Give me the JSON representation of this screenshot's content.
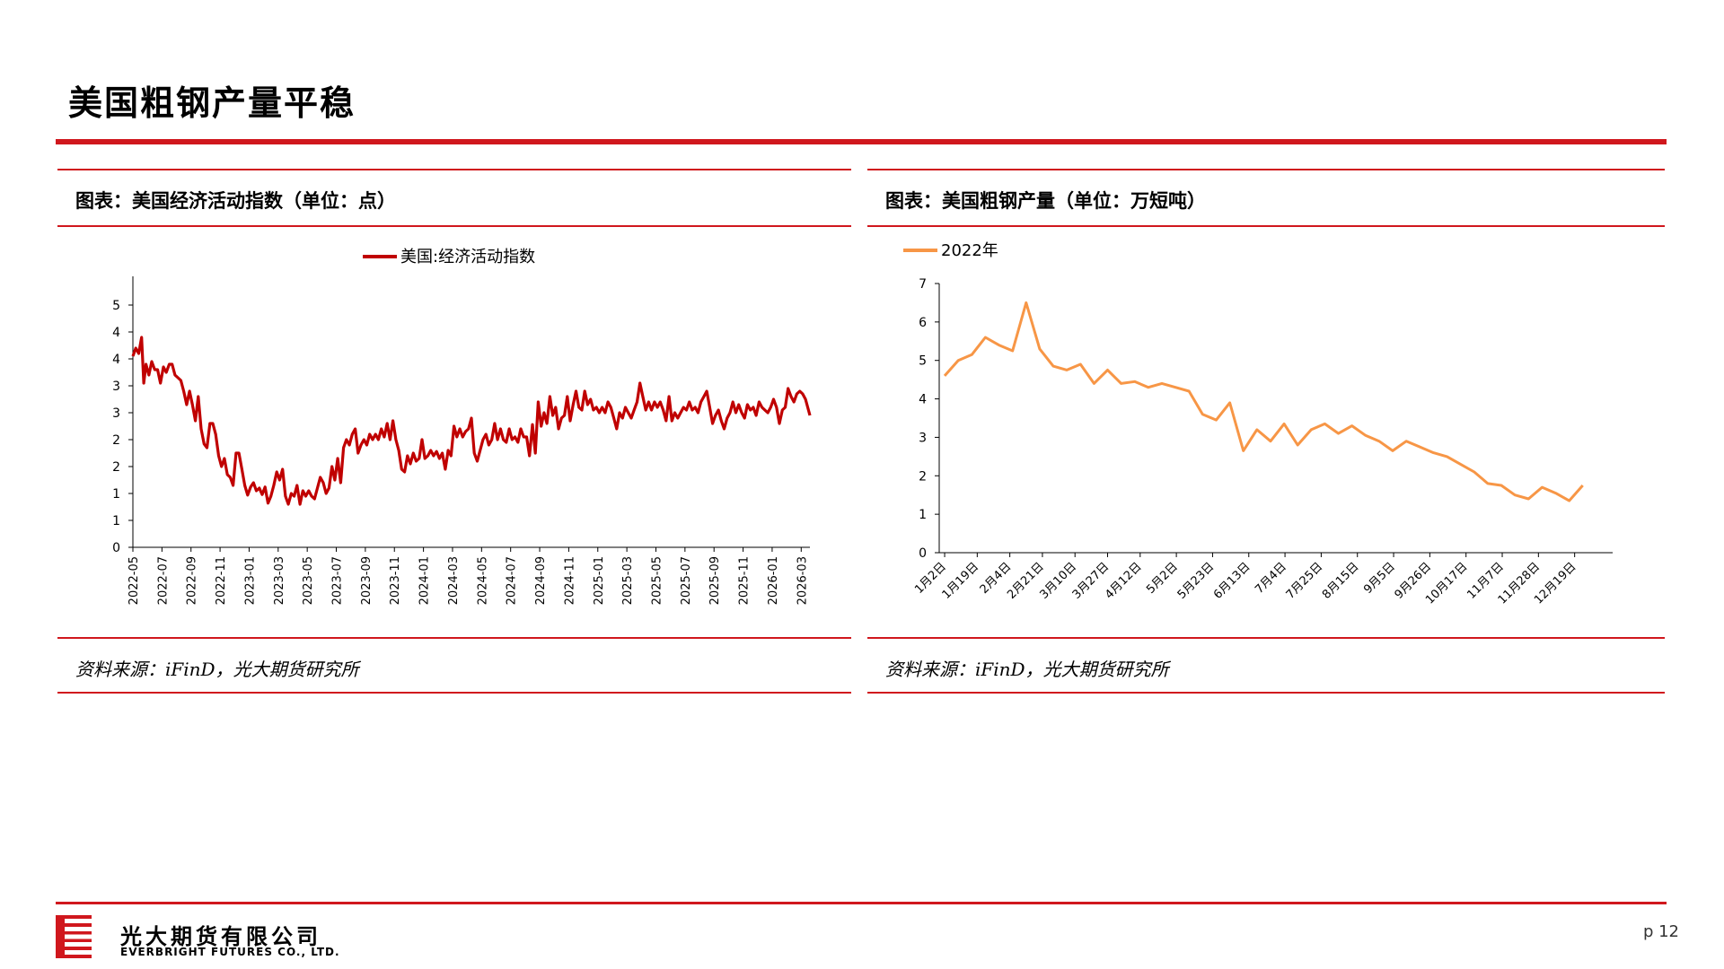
{
  "page": {
    "title": "美国粗钢产量平稳",
    "page_number": "p 12",
    "accent_color": "#d0171d"
  },
  "company": {
    "name_cn": "光大期货有限公司",
    "name_en": "EVERBRIGHT FUTURES CO., LTD."
  },
  "panels": [
    {
      "title": "图表：美国经济活动指数（单位：点）",
      "source": "资料来源：iFinD，光大期货研究所"
    },
    {
      "title": "图表：美国粗钢产量（单位：万短吨）",
      "source": "资料来源：iFinD，光大期货研究所"
    }
  ],
  "chart_data": [
    {
      "type": "line",
      "title": "",
      "xlabel": "",
      "ylabel": "",
      "ylim": [
        0,
        5
      ],
      "yticks": [
        0,
        0.5,
        1,
        1.5,
        2,
        2.5,
        3,
        3.5,
        4,
        4.5
      ],
      "ytick_labels": [
        "0",
        "1",
        "1",
        "2",
        "2",
        "3",
        "3",
        "4",
        "4",
        "5"
      ],
      "x_tick_labels": [
        "2022-05",
        "2022-07",
        "2022-09",
        "2022-11",
        "2023-01",
        "2023-03",
        "2023-05",
        "2023-07",
        "2023-09",
        "2023-11",
        "2024-01",
        "2024-03",
        "2024-05",
        "2024-07",
        "2024-09",
        "2024-11",
        "2025-01",
        "2025-03",
        "2025-05",
        "2025-07",
        "2025-09",
        "2025-11",
        "2026-01",
        "2026-03"
      ],
      "x_range": [
        0,
        46.6
      ],
      "grid": false,
      "legend": "top-center",
      "series": [
        {
          "name": "美国:经济活动指数",
          "color": "#c00000",
          "points": [
            [
              0,
              3.55
            ],
            [
              0.2,
              3.7
            ],
            [
              0.4,
              3.6
            ],
            [
              0.6,
              3.9
            ],
            [
              0.75,
              3.05
            ],
            [
              0.9,
              3.4
            ],
            [
              1.1,
              3.2
            ],
            [
              1.3,
              3.45
            ],
            [
              1.5,
              3.3
            ],
            [
              1.7,
              3.3
            ],
            [
              1.9,
              3.05
            ],
            [
              2.1,
              3.35
            ],
            [
              2.3,
              3.25
            ],
            [
              2.5,
              3.4
            ],
            [
              2.7,
              3.4
            ],
            [
              2.9,
              3.2
            ],
            [
              3.1,
              3.15
            ],
            [
              3.3,
              3.1
            ],
            [
              3.5,
              2.9
            ],
            [
              3.7,
              2.65
            ],
            [
              3.9,
              2.9
            ],
            [
              4.1,
              2.65
            ],
            [
              4.3,
              2.35
            ],
            [
              4.5,
              2.8
            ],
            [
              4.7,
              2.2
            ],
            [
              4.9,
              1.92
            ],
            [
              5.1,
              1.85
            ],
            [
              5.3,
              2.3
            ],
            [
              5.5,
              2.3
            ],
            [
              5.7,
              2.1
            ],
            [
              5.9,
              1.7
            ],
            [
              6.1,
              1.5
            ],
            [
              6.3,
              1.65
            ],
            [
              6.5,
              1.35
            ],
            [
              6.7,
              1.3
            ],
            [
              6.9,
              1.15
            ],
            [
              7.1,
              1.75
            ],
            [
              7.3,
              1.75
            ],
            [
              7.5,
              1.45
            ],
            [
              7.7,
              1.15
            ],
            [
              7.9,
              0.97
            ],
            [
              8.1,
              1.12
            ],
            [
              8.3,
              1.2
            ],
            [
              8.5,
              1.05
            ],
            [
              8.7,
              1.1
            ],
            [
              8.9,
              0.98
            ],
            [
              9.1,
              1.12
            ],
            [
              9.3,
              0.82
            ],
            [
              9.5,
              0.95
            ],
            [
              9.7,
              1.15
            ],
            [
              9.9,
              1.4
            ],
            [
              10.1,
              1.25
            ],
            [
              10.3,
              1.45
            ],
            [
              10.5,
              0.95
            ],
            [
              10.7,
              0.8
            ],
            [
              10.9,
              1.0
            ],
            [
              11.1,
              0.95
            ],
            [
              11.3,
              1.15
            ],
            [
              11.5,
              0.8
            ],
            [
              11.7,
              1.05
            ],
            [
              11.9,
              0.95
            ],
            [
              12.1,
              1.05
            ],
            [
              12.3,
              0.95
            ],
            [
              12.5,
              0.9
            ],
            [
              12.7,
              1.1
            ],
            [
              12.9,
              1.3
            ],
            [
              13.1,
              1.2
            ],
            [
              13.3,
              1.0
            ],
            [
              13.5,
              1.1
            ],
            [
              13.7,
              1.5
            ],
            [
              13.9,
              1.25
            ],
            [
              14.1,
              1.65
            ],
            [
              14.3,
              1.2
            ],
            [
              14.5,
              1.85
            ],
            [
              14.7,
              2.0
            ],
            [
              14.9,
              1.9
            ],
            [
              15.1,
              2.1
            ],
            [
              15.3,
              2.2
            ],
            [
              15.5,
              1.75
            ],
            [
              15.7,
              1.9
            ],
            [
              15.9,
              2.0
            ],
            [
              16.1,
              1.9
            ],
            [
              16.3,
              2.1
            ],
            [
              16.5,
              2.0
            ],
            [
              16.7,
              2.1
            ],
            [
              16.9,
              2.0
            ],
            [
              17.1,
              2.2
            ],
            [
              17.3,
              2.05
            ],
            [
              17.5,
              2.3
            ],
            [
              17.7,
              2.0
            ],
            [
              17.9,
              2.35
            ],
            [
              18.1,
              2.0
            ],
            [
              18.3,
              1.8
            ],
            [
              18.5,
              1.45
            ],
            [
              18.7,
              1.4
            ],
            [
              18.9,
              1.7
            ],
            [
              19.1,
              1.55
            ],
            [
              19.3,
              1.75
            ],
            [
              19.5,
              1.6
            ],
            [
              19.7,
              1.65
            ],
            [
              19.9,
              2.0
            ],
            [
              20.1,
              1.65
            ],
            [
              20.3,
              1.7
            ],
            [
              20.5,
              1.8
            ],
            [
              20.7,
              1.7
            ],
            [
              20.9,
              1.78
            ],
            [
              21.1,
              1.65
            ],
            [
              21.3,
              1.75
            ],
            [
              21.5,
              1.45
            ],
            [
              21.7,
              1.8
            ],
            [
              21.9,
              1.7
            ],
            [
              22.1,
              2.25
            ],
            [
              22.3,
              2.05
            ],
            [
              22.5,
              2.2
            ],
            [
              22.7,
              2.05
            ],
            [
              22.9,
              2.15
            ],
            [
              23.1,
              2.2
            ],
            [
              23.3,
              2.4
            ],
            [
              23.5,
              1.75
            ],
            [
              23.7,
              1.6
            ],
            [
              23.9,
              1.8
            ],
            [
              24.1,
              2.0
            ],
            [
              24.3,
              2.1
            ],
            [
              24.5,
              1.9
            ],
            [
              24.7,
              2.0
            ],
            [
              24.9,
              2.3
            ],
            [
              25.1,
              2.0
            ],
            [
              25.3,
              2.2
            ],
            [
              25.5,
              2.0
            ],
            [
              25.7,
              1.95
            ],
            [
              25.9,
              2.2
            ],
            [
              26.1,
              2.0
            ],
            [
              26.3,
              2.05
            ],
            [
              26.5,
              1.95
            ],
            [
              26.7,
              2.2
            ],
            [
              26.9,
              2.05
            ],
            [
              27.1,
              2.05
            ],
            [
              27.3,
              1.7
            ],
            [
              27.5,
              2.28
            ],
            [
              27.7,
              1.75
            ],
            [
              27.9,
              2.7
            ],
            [
              28.1,
              2.25
            ],
            [
              28.3,
              2.5
            ],
            [
              28.5,
              2.3
            ],
            [
              28.7,
              2.8
            ],
            [
              28.9,
              2.45
            ],
            [
              29.1,
              2.6
            ],
            [
              29.3,
              2.2
            ],
            [
              29.5,
              2.4
            ],
            [
              29.7,
              2.45
            ],
            [
              29.9,
              2.8
            ],
            [
              30.1,
              2.35
            ],
            [
              30.3,
              2.65
            ],
            [
              30.5,
              2.9
            ],
            [
              30.7,
              2.6
            ],
            [
              30.9,
              2.55
            ],
            [
              31.1,
              2.9
            ],
            [
              31.3,
              2.65
            ],
            [
              31.5,
              2.75
            ],
            [
              31.7,
              2.55
            ],
            [
              31.9,
              2.6
            ],
            [
              32.1,
              2.5
            ],
            [
              32.3,
              2.6
            ],
            [
              32.5,
              2.5
            ],
            [
              32.7,
              2.7
            ],
            [
              32.9,
              2.6
            ],
            [
              33.1,
              2.4
            ],
            [
              33.3,
              2.2
            ],
            [
              33.5,
              2.5
            ],
            [
              33.7,
              2.4
            ],
            [
              33.9,
              2.6
            ],
            [
              34.1,
              2.5
            ],
            [
              34.3,
              2.4
            ],
            [
              34.5,
              2.55
            ],
            [
              34.7,
              2.7
            ],
            [
              34.9,
              3.05
            ],
            [
              35.1,
              2.8
            ],
            [
              35.3,
              2.55
            ],
            [
              35.5,
              2.7
            ],
            [
              35.7,
              2.55
            ],
            [
              35.9,
              2.7
            ],
            [
              36.1,
              2.6
            ],
            [
              36.3,
              2.7
            ],
            [
              36.5,
              2.55
            ],
            [
              36.7,
              2.35
            ],
            [
              36.9,
              2.8
            ],
            [
              37.1,
              2.35
            ],
            [
              37.3,
              2.5
            ],
            [
              37.5,
              2.4
            ],
            [
              37.7,
              2.5
            ],
            [
              37.9,
              2.6
            ],
            [
              38.1,
              2.55
            ],
            [
              38.3,
              2.7
            ],
            [
              38.5,
              2.55
            ],
            [
              38.7,
              2.6
            ],
            [
              38.9,
              2.5
            ],
            [
              39.1,
              2.7
            ],
            [
              39.3,
              2.8
            ],
            [
              39.5,
              2.9
            ],
            [
              39.7,
              2.6
            ],
            [
              39.9,
              2.3
            ],
            [
              40.1,
              2.45
            ],
            [
              40.3,
              2.55
            ],
            [
              40.5,
              2.35
            ],
            [
              40.7,
              2.2
            ],
            [
              40.9,
              2.4
            ],
            [
              41.1,
              2.5
            ],
            [
              41.3,
              2.7
            ],
            [
              41.5,
              2.5
            ],
            [
              41.7,
              2.65
            ],
            [
              41.9,
              2.5
            ],
            [
              42.1,
              2.4
            ],
            [
              42.3,
              2.65
            ],
            [
              42.5,
              2.55
            ],
            [
              42.7,
              2.6
            ],
            [
              42.9,
              2.45
            ],
            [
              43.1,
              2.7
            ],
            [
              43.3,
              2.6
            ],
            [
              43.5,
              2.55
            ],
            [
              43.7,
              2.5
            ],
            [
              43.9,
              2.6
            ],
            [
              44.1,
              2.75
            ],
            [
              44.3,
              2.6
            ],
            [
              44.5,
              2.3
            ],
            [
              44.7,
              2.55
            ],
            [
              44.9,
              2.6
            ],
            [
              45.1,
              2.95
            ],
            [
              45.3,
              2.8
            ],
            [
              45.5,
              2.7
            ],
            [
              45.7,
              2.85
            ],
            [
              45.9,
              2.9
            ],
            [
              46.1,
              2.85
            ],
            [
              46.3,
              2.75
            ],
            [
              46.6,
              2.45
            ]
          ]
        }
      ]
    },
    {
      "type": "line",
      "title": "",
      "xlabel": "",
      "ylabel": "",
      "ylim": [
        0,
        7
      ],
      "yticks": [
        0,
        1,
        2,
        3,
        4,
        5,
        6,
        7
      ],
      "x_tick_labels": [
        "1月2日",
        "1月19日",
        "2月4日",
        "2月21日",
        "3月10日",
        "3月27日",
        "4月12日",
        "5月2日",
        "5月23日",
        "6月13日",
        "7月4日",
        "7月25日",
        "8月15日",
        "9月5日",
        "9月26日",
        "10月17日",
        "11月7日",
        "11月28日",
        "12月19日"
      ],
      "x_tick_positions": [
        0,
        1.8,
        3.6,
        5.4,
        7.2,
        9.0,
        10.8,
        12.8,
        14.8,
        16.8,
        18.8,
        20.8,
        22.8,
        24.8,
        26.8,
        28.8,
        30.8,
        32.8,
        34.8
      ],
      "x_range": [
        -0.3,
        36.9
      ],
      "grid": false,
      "legend": "top",
      "series": [
        {
          "name": "2022年",
          "color": "#f79646",
          "values": [
            4.6,
            5.0,
            5.15,
            5.6,
            5.4,
            5.25,
            6.5,
            5.3,
            4.85,
            4.75,
            4.9,
            4.4,
            4.75,
            4.4,
            4.45,
            4.3,
            4.4,
            4.3,
            4.2,
            3.6,
            3.45,
            3.9,
            2.65,
            3.2,
            2.9,
            3.35,
            2.8,
            3.2,
            3.35,
            3.1,
            3.3,
            3.05,
            2.9,
            2.65,
            2.9,
            2.75,
            2.6,
            2.5,
            2.3,
            2.1,
            1.8,
            1.75,
            1.5,
            1.4,
            1.7,
            1.55,
            1.35,
            1.75
          ]
        }
      ]
    }
  ]
}
